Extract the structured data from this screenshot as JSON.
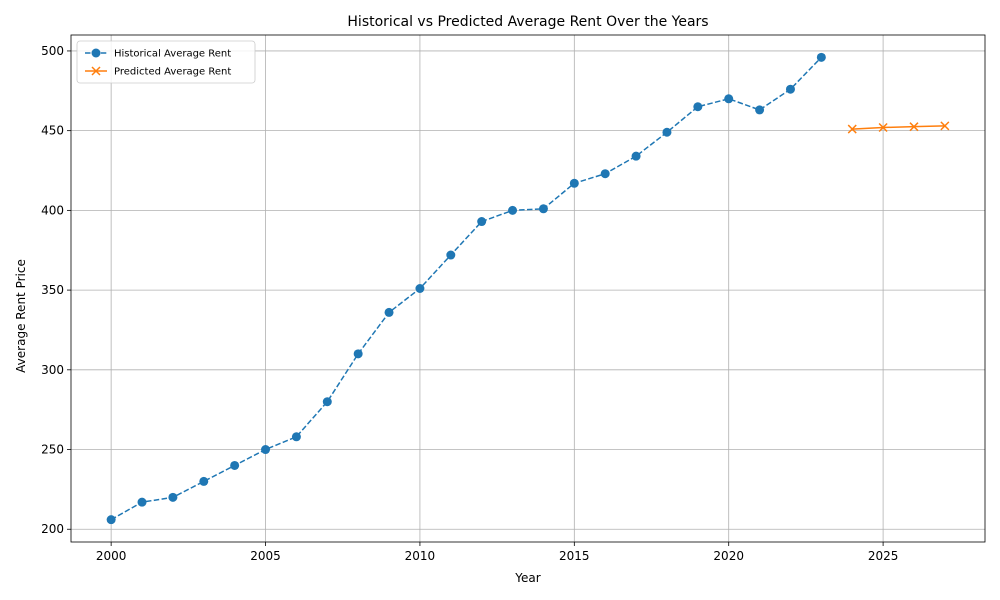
{
  "chart_data": {
    "type": "line",
    "title": "Historical vs Predicted Average Rent Over the Years",
    "xlabel": "Year",
    "ylabel": "Average Rent Price",
    "xlim": [
      1998.7,
      2028.3
    ],
    "ylim": [
      192,
      510
    ],
    "xticks": [
      2000,
      2005,
      2010,
      2015,
      2020,
      2025
    ],
    "yticks": [
      200,
      250,
      300,
      350,
      400,
      450,
      500
    ],
    "grid": true,
    "legend_position": "top-left",
    "series": [
      {
        "name": "Historical Average Rent",
        "color": "#1f77b4",
        "line_style": "dashed",
        "marker": "circle",
        "x": [
          2000,
          2001,
          2002,
          2003,
          2004,
          2005,
          2006,
          2007,
          2008,
          2009,
          2010,
          2011,
          2012,
          2013,
          2014,
          2015,
          2016,
          2017,
          2018,
          2019,
          2020,
          2021,
          2022,
          2023
        ],
        "y": [
          206,
          217,
          220,
          230,
          240,
          250,
          258,
          280,
          310,
          336,
          351,
          372,
          393,
          400,
          401,
          417,
          423,
          434,
          449,
          465,
          470,
          463,
          476,
          496
        ]
      },
      {
        "name": "Predicted Average Rent",
        "color": "#ff7f0e",
        "line_style": "solid",
        "marker": "x",
        "x": [
          2024,
          2025,
          2026,
          2027
        ],
        "y": [
          451,
          452,
          452.5,
          453
        ]
      }
    ]
  }
}
